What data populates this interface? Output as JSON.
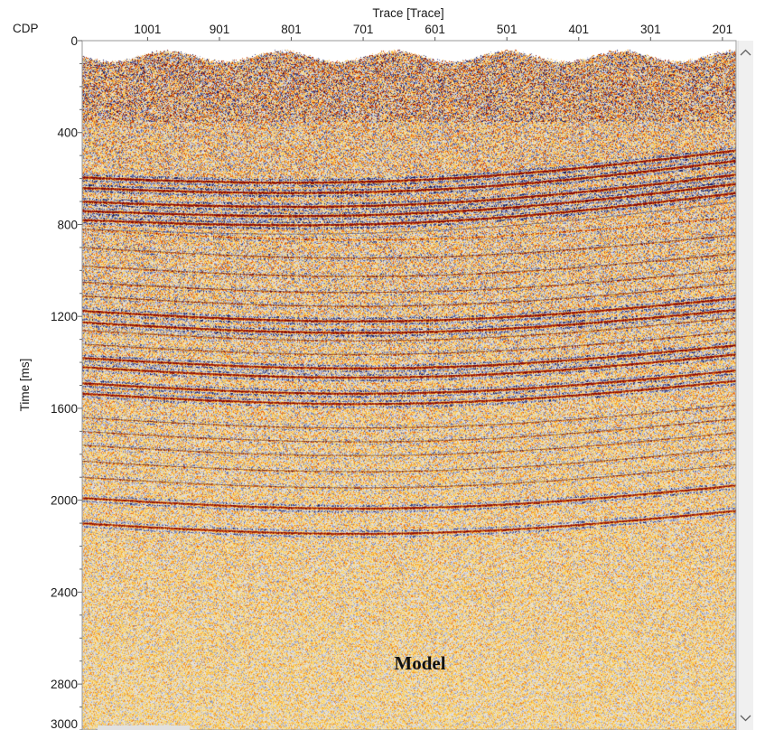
{
  "chart_data": {
    "type": "heatmap",
    "title": "",
    "xlabel": "Trace [Trace]",
    "ylabel": "Time [ms]",
    "x_axis_name": "CDP",
    "x_ticks": [
      "1001",
      "901",
      "801",
      "701",
      "601",
      "501",
      "401",
      "301",
      "201"
    ],
    "x_tick_values": [
      1001,
      901,
      801,
      701,
      601,
      501,
      401,
      301,
      201
    ],
    "x_range": [
      1092,
      182
    ],
    "x_reversed": true,
    "y_ticks": [
      "0",
      "400",
      "800",
      "1200",
      "1600",
      "2000",
      "2400",
      "2800",
      "3000"
    ],
    "y_tick_values": [
      0,
      400,
      800,
      1200,
      1600,
      2000,
      2400,
      2800,
      3000
    ],
    "ylim": [
      0,
      3000
    ],
    "y_reversed": true,
    "annotation": "Model",
    "colormap": [
      "#14185a",
      "#6a74a8",
      "#e6e6f0",
      "#ffd24d",
      "#e65a12",
      "#7a0a0a"
    ],
    "reflectors_ms": {
      "strong": [
        595,
        640,
        700,
        740,
        780,
        1175,
        1225,
        1380,
        1420,
        1490,
        1535,
        1990,
        2100
      ],
      "weak": [
        820,
        900,
        980,
        1050,
        1110,
        1260,
        1320,
        1640,
        1700,
        1760,
        1830,
        1900
      ]
    }
  },
  "ui": {
    "scrollbar_up_icon": "chevron-up-icon",
    "scrollbar_down_icon": "chevron-down-icon"
  }
}
